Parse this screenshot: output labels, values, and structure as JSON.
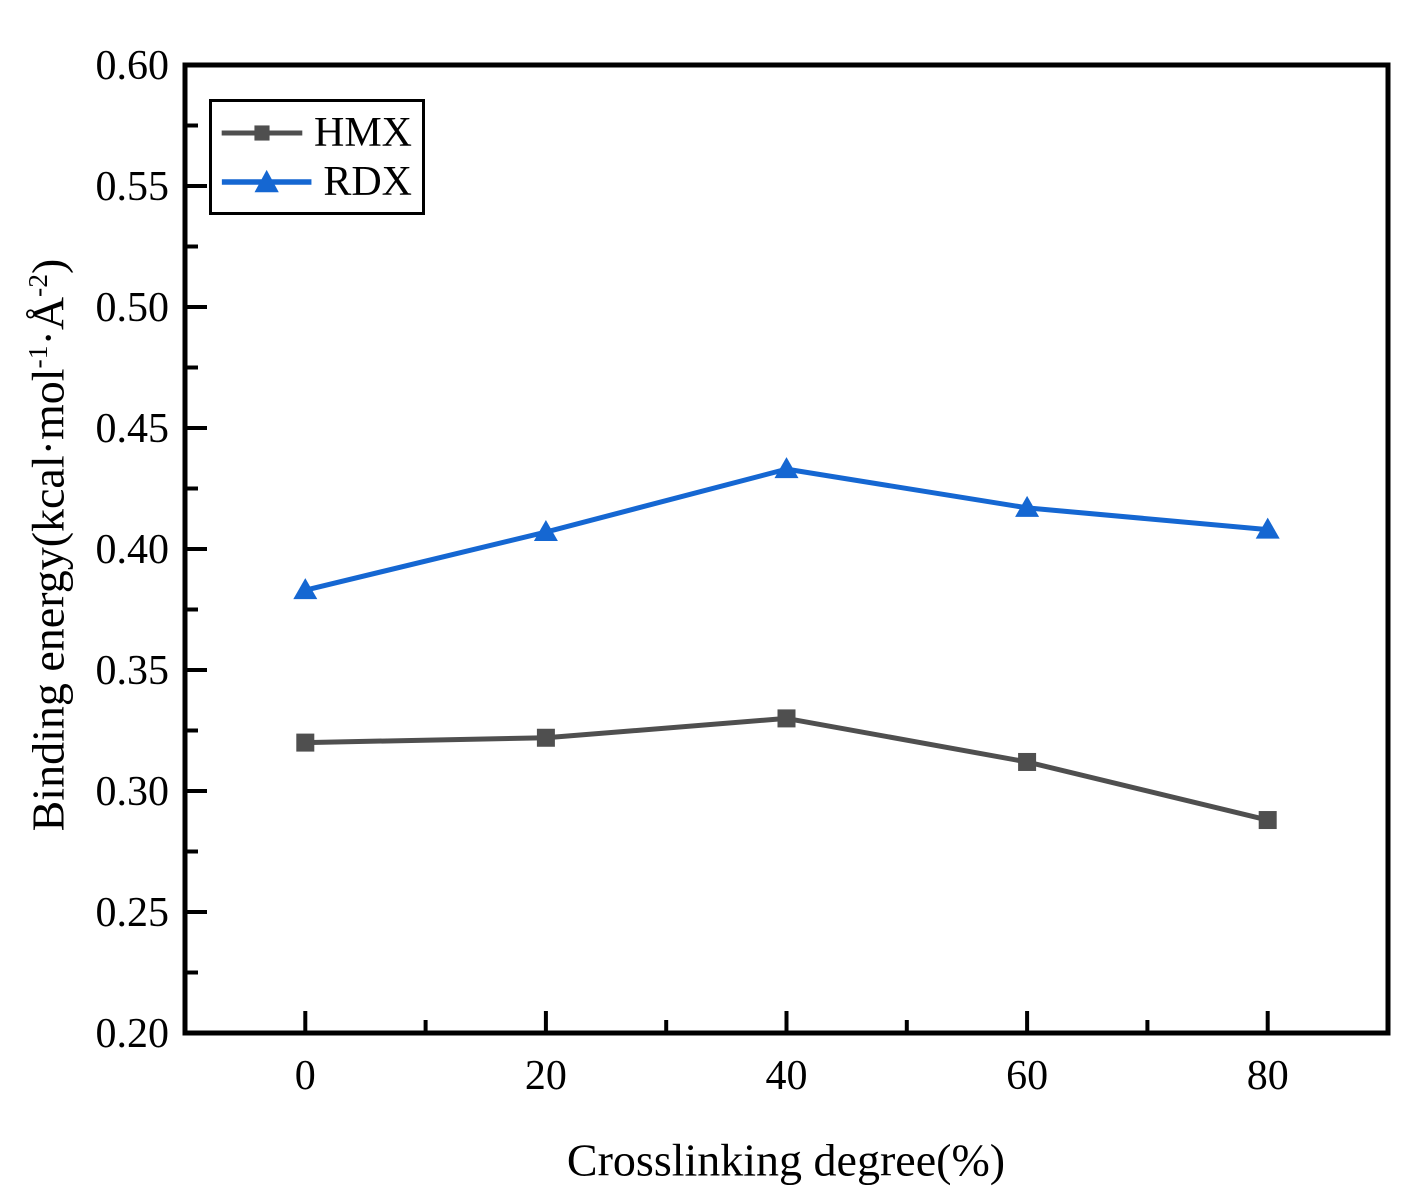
{
  "chart_data": {
    "type": "line",
    "title": "",
    "xlabel": "Crosslinking degree(%)",
    "ylabel": "Binding energy(kcal·mol⁻¹·Å⁻²)",
    "ylabel_parts": {
      "prefix": "Binding energy(kcal·mol",
      "sup1": "-1",
      "mid": "·Å",
      "sup2": "-2",
      "suffix": ")"
    },
    "x": [
      0,
      20,
      40,
      60,
      80
    ],
    "series": [
      {
        "name": "HMX",
        "color": "#4f4f4f",
        "marker": "square",
        "values": [
          0.32,
          0.322,
          0.33,
          0.312,
          0.288
        ]
      },
      {
        "name": "RDX",
        "color": "#1567d2",
        "marker": "triangle",
        "values": [
          0.383,
          0.407,
          0.433,
          0.417,
          0.408
        ]
      }
    ],
    "xlim": [
      -10,
      90
    ],
    "ylim": [
      0.2,
      0.6
    ],
    "xtick_labels": [
      "0",
      "20",
      "40",
      "60",
      "80"
    ],
    "xticks": [
      0,
      20,
      40,
      60,
      80
    ],
    "x_minor_ticks": [
      10,
      30,
      50,
      70,
      90
    ],
    "ytick_labels": [
      "0.20",
      "0.25",
      "0.30",
      "0.35",
      "0.40",
      "0.45",
      "0.50",
      "0.55",
      "0.60"
    ],
    "yticks": [
      0.2,
      0.25,
      0.3,
      0.35,
      0.4,
      0.45,
      0.5,
      0.55,
      0.6
    ],
    "y_minor_ticks": [
      0.225,
      0.275,
      0.325,
      0.375,
      0.425,
      0.475,
      0.525,
      0.575
    ],
    "grid": false,
    "legend_position": "top-left",
    "frame_color": "#000000",
    "background_color": "#ffffff"
  }
}
